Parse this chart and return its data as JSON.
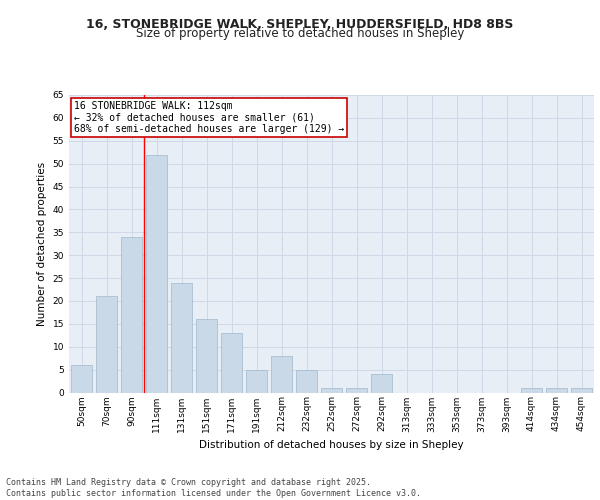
{
  "title_line1": "16, STONEBRIDGE WALK, SHEPLEY, HUDDERSFIELD, HD8 8BS",
  "title_line2": "Size of property relative to detached houses in Shepley",
  "xlabel": "Distribution of detached houses by size in Shepley",
  "ylabel": "Number of detached properties",
  "categories": [
    "50sqm",
    "70sqm",
    "90sqm",
    "111sqm",
    "131sqm",
    "151sqm",
    "171sqm",
    "191sqm",
    "212sqm",
    "232sqm",
    "252sqm",
    "272sqm",
    "292sqm",
    "313sqm",
    "333sqm",
    "353sqm",
    "373sqm",
    "393sqm",
    "414sqm",
    "434sqm",
    "454sqm"
  ],
  "values": [
    6,
    21,
    34,
    52,
    24,
    16,
    13,
    5,
    8,
    5,
    1,
    1,
    4,
    0,
    0,
    0,
    0,
    0,
    1,
    1,
    1
  ],
  "bar_color": "#c9d9e8",
  "bar_edge_color": "#a0b8cc",
  "grid_color": "#d0d8e8",
  "background_color": "#e8eef5",
  "red_line_index": 3,
  "annotation_text": "16 STONEBRIDGE WALK: 112sqm\n← 32% of detached houses are smaller (61)\n68% of semi-detached houses are larger (129) →",
  "annotation_box_color": "#ffffff",
  "annotation_box_edge": "#cc0000",
  "ylim": [
    0,
    65
  ],
  "yticks": [
    0,
    5,
    10,
    15,
    20,
    25,
    30,
    35,
    40,
    45,
    50,
    55,
    60,
    65
  ],
  "footer_text": "Contains HM Land Registry data © Crown copyright and database right 2025.\nContains public sector information licensed under the Open Government Licence v3.0.",
  "title_fontsize": 9,
  "subtitle_fontsize": 8.5,
  "tick_fontsize": 6.5,
  "label_fontsize": 7.5,
  "annotation_fontsize": 7,
  "footer_fontsize": 6
}
